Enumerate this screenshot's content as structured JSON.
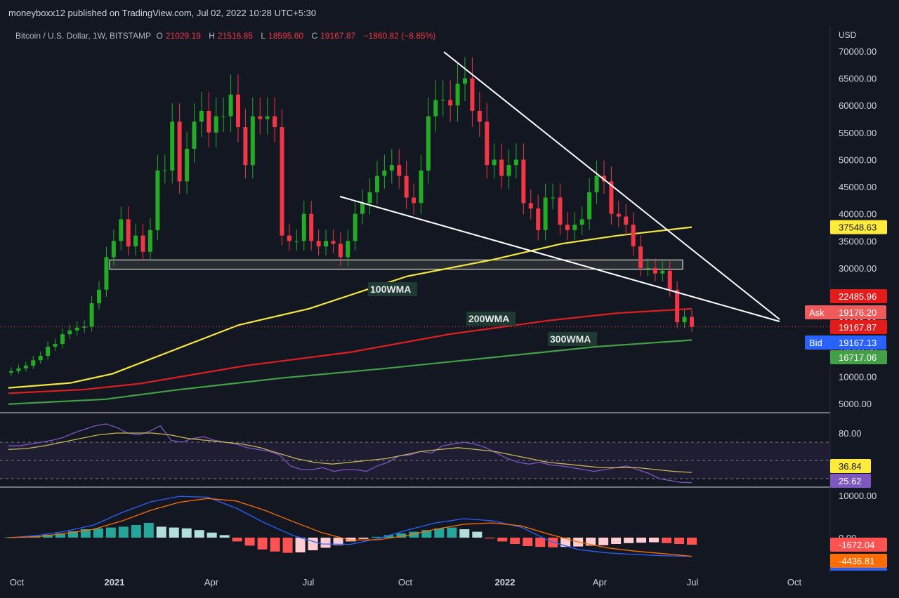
{
  "header": {
    "published": "moneyboxx12 published on TradingView.com, Jul 02, 2022 10:28 UTC+5:30"
  },
  "symbol": {
    "name": "Bitcoin / U.S. Dollar, 1W, BITSTAMP",
    "o_label": "O",
    "o": "21029.19",
    "h_label": "H",
    "h": "21516.85",
    "l_label": "L",
    "l": "18595.60",
    "c_label": "C",
    "c": "19167.87",
    "change": "−1860.82 (−8.85%)"
  },
  "colors": {
    "background": "#131722",
    "up": "#26a69a",
    "up_candle": "#22ab24",
    "down": "#f23645",
    "wma100": "#f5e642",
    "wma200": "#e02020",
    "wma300": "#43a047",
    "rsi": "#7e57c2",
    "rsi_ma": "#c9b458",
    "macd": "#2962ff",
    "signal": "#ff6d00"
  },
  "chart_data": [
    {
      "type": "candlestick",
      "title": "Bitcoin / U.S. Dollar, 1W, BITSTAMP",
      "currency_label": "USD",
      "ylim": [
        4000,
        74000
      ],
      "y_ticks": [
        "70000.00",
        "65000.00",
        "60000.00",
        "55000.00",
        "50000.00",
        "45000.00",
        "40000.00",
        "35000.00",
        "30000.00",
        "25000.00",
        "20000.00",
        "15000.00",
        "10000.00",
        "5000.00"
      ],
      "x_ticks": [
        "Oct",
        "2021",
        "Apr",
        "Jul",
        "Oct",
        "2022",
        "Apr",
        "Jul",
        "Oct"
      ],
      "candles_close": [
        11000,
        11500,
        12000,
        13000,
        13800,
        15500,
        16000,
        17800,
        18500,
        19000,
        19200,
        23500,
        26000,
        32000,
        35000,
        39000,
        34000,
        36000,
        33000,
        37000,
        48000,
        48000,
        57000,
        46000,
        52000,
        57000,
        59000,
        55000,
        58000,
        58000,
        62000,
        56000,
        49000,
        58000,
        57500,
        58000,
        56000,
        36000,
        35000,
        35000,
        40000,
        35000,
        34000,
        35000,
        34500,
        32000,
        35000,
        40000,
        42000,
        44000,
        47000,
        48000,
        49000,
        47000,
        43000,
        42000,
        48000,
        58000,
        61000,
        61000,
        60000,
        64000,
        65000,
        59000,
        57000,
        49000,
        50000,
        47000,
        49000,
        50000,
        42000,
        41000,
        37000,
        43000,
        43000,
        38000,
        37000,
        38000,
        39000,
        44000,
        47000,
        46000,
        40000,
        39500,
        38000,
        34000,
        30000,
        30000,
        29000,
        29500,
        26000,
        20000,
        21000,
        19167
      ],
      "overlays": [
        {
          "name": "100WMA",
          "last_value": "37548.63"
        },
        {
          "name": "200WMA",
          "last_value": "22485.96"
        },
        {
          "name": "300WMA",
          "last_value": "16717.06"
        }
      ],
      "price_tags": {
        "ask_label": "Ask",
        "ask": "19176.20",
        "last": "19167.87",
        "bid_label": "Bid",
        "bid": "19167.13"
      },
      "annotations": {
        "support_zone": [
          29800,
          31500
        ],
        "upper_trendline": [
          [
            2021.87,
            69000
          ],
          [
            2022.73,
            20500
          ]
        ],
        "lower_trendline": [
          [
            2021.55,
            43500
          ],
          [
            2022.73,
            20500
          ]
        ]
      }
    },
    {
      "type": "line",
      "title": "RSI",
      "ylim": [
        0,
        100
      ],
      "y_ticks": [
        "80.00"
      ],
      "bands": [
        70,
        50,
        30
      ],
      "series": [
        {
          "values": [
            66,
            66,
            68,
            70,
            72,
            75,
            80,
            84,
            88,
            90,
            86,
            80,
            78,
            82,
            88,
            72,
            70,
            74,
            76,
            72,
            70,
            68,
            64,
            62,
            60,
            56,
            44,
            40,
            40,
            42,
            38,
            40,
            40,
            38,
            44,
            48,
            55,
            56,
            60,
            58,
            66,
            68,
            70,
            68,
            64,
            58,
            52,
            48,
            46,
            48,
            45,
            44,
            42,
            40,
            38,
            40,
            42,
            44,
            40,
            36,
            30,
            28,
            26,
            25.62
          ]
        },
        {
          "values": [
            62,
            63,
            66,
            70,
            74,
            78,
            80,
            80,
            80,
            78,
            74,
            72,
            70,
            68,
            64,
            58,
            52,
            48,
            46,
            48,
            50,
            52,
            56,
            60,
            62,
            64,
            62,
            60,
            56,
            52,
            48,
            46,
            44,
            42,
            42,
            42,
            40,
            38,
            36.84
          ]
        }
      ],
      "last_values": [
        "36.84",
        "25.62"
      ]
    },
    {
      "type": "bar",
      "title": "MACD",
      "y_ticks": [
        "10000.00",
        "0.00"
      ],
      "histogram": [
        100,
        200,
        400,
        700,
        1000,
        1500,
        2000,
        2200,
        2400,
        2600,
        3000,
        3500,
        2600,
        2400,
        2200,
        1800,
        1200,
        600,
        -900,
        -1900,
        -2800,
        -3300,
        -3600,
        -3500,
        -3000,
        -2400,
        -1800,
        -900,
        -300,
        200,
        600,
        1000,
        1400,
        1800,
        2200,
        2400,
        2000,
        1400,
        -200,
        -900,
        -1500,
        -2000,
        -2200,
        -2300,
        -2200,
        -2100,
        -1900,
        -1800,
        -1500,
        -1300,
        -1200,
        -1100,
        -1300,
        -1500,
        -1672.04
      ],
      "series": [
        {
          "values": [
            0,
            500,
            1500,
            3000,
            6000,
            8500,
            9800,
            9600,
            7000,
            3500,
            500,
            -1500,
            -1600,
            -200,
            1800,
            3500,
            4500,
            4000,
            2500,
            -800,
            -2800,
            -3600,
            -4000,
            -4300,
            -4436.81
          ]
        },
        {
          "values": [
            0,
            200,
            1000,
            2000,
            4000,
            6500,
            8400,
            9300,
            8700,
            6500,
            3800,
            1200,
            -600,
            -500,
            500,
            2000,
            3200,
            3500,
            2800,
            800,
            -1000,
            -2400,
            -3200,
            -3800,
            -4436.81
          ]
        }
      ],
      "last_values": [
        "-1672.04",
        "-4436.81"
      ]
    }
  ],
  "texts": {
    "usd": "USD",
    "wma100_label": "100WMA",
    "wma200_label": "200WMA",
    "wma300_label": "300WMA"
  }
}
